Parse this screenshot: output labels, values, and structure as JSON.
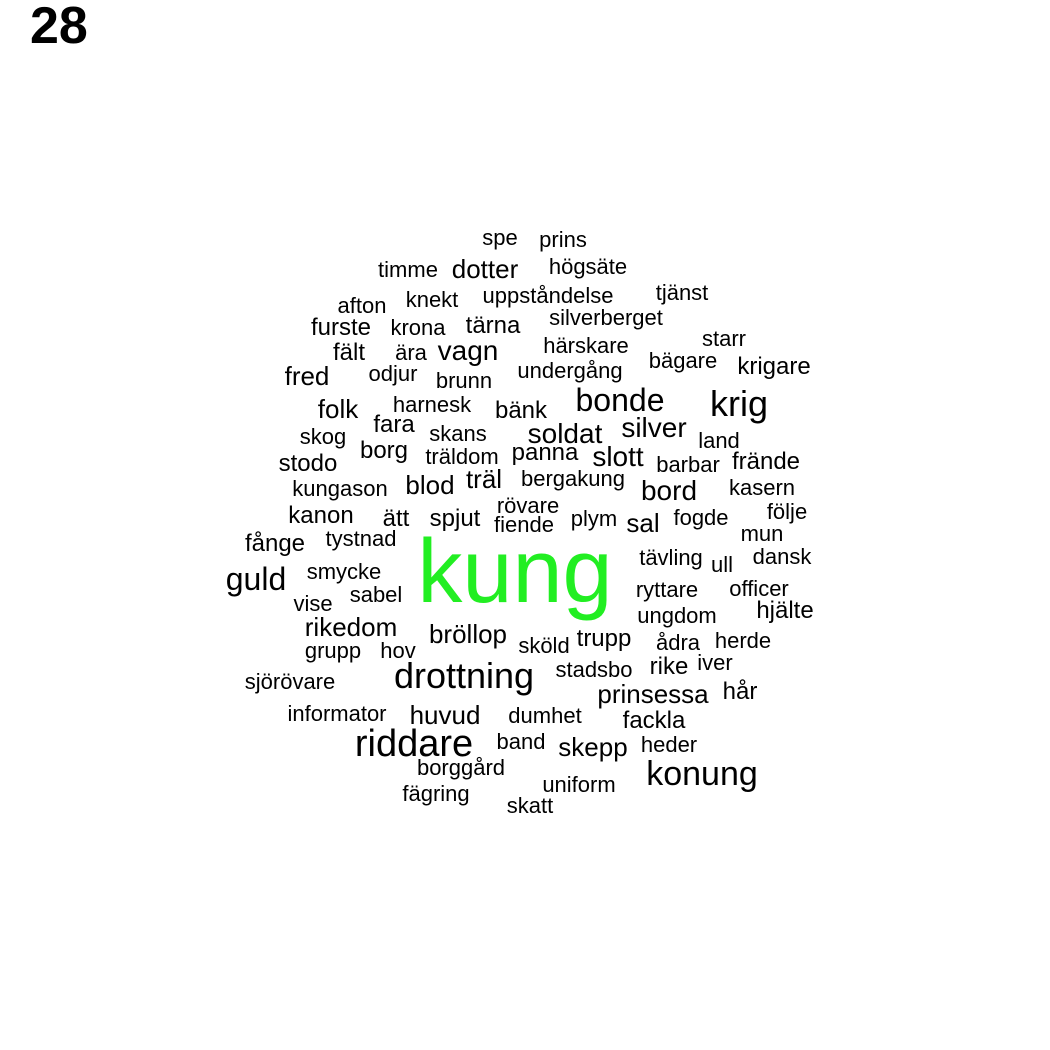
{
  "page_number": "28",
  "colors": {
    "default": "#000000",
    "highlight": "#22ee22"
  },
  "highlight_word": "kung",
  "words": [
    "spe",
    "prins",
    "timme",
    "dotter",
    "högsäte",
    "afton",
    "knekt",
    "uppståndelse",
    "tjänst",
    "furste",
    "krona",
    "tärna",
    "silverberget",
    "starr",
    "fält",
    "ära",
    "vagn",
    "härskare",
    "bägare",
    "krigare",
    "fred",
    "odjur",
    "brunn",
    "undergång",
    "folk",
    "harnesk",
    "bänk",
    "bonde",
    "krig",
    "fara",
    "skog",
    "skans",
    "soldat",
    "silver",
    "land",
    "borg",
    "stodo",
    "träldom",
    "panna",
    "slott",
    "barbar",
    "frände",
    "kungason",
    "blod",
    "träl",
    "bergakung",
    "bord",
    "kasern",
    "rövare",
    "kanon",
    "ätt",
    "spjut",
    "fiende",
    "plym",
    "sal",
    "fogde",
    "följe",
    "mun",
    "fånge",
    "tystnad",
    "kung",
    "tävling",
    "ull",
    "dansk",
    "guld",
    "smycke",
    "ryttare",
    "officer",
    "vise",
    "sabel",
    "ungdom",
    "hjälte",
    "rikedom",
    "bröllop",
    "trupp",
    "sköld",
    "ådra",
    "herde",
    "grupp",
    "hov",
    "rike",
    "iver",
    "sjörövare",
    "drottning",
    "stadsbo",
    "prinsessa",
    "hår",
    "informator",
    "huvud",
    "dumhet",
    "fackla",
    "riddare",
    "band",
    "skepp",
    "heder",
    "borggård",
    "konung",
    "uniform",
    "fägring",
    "skatt"
  ]
}
